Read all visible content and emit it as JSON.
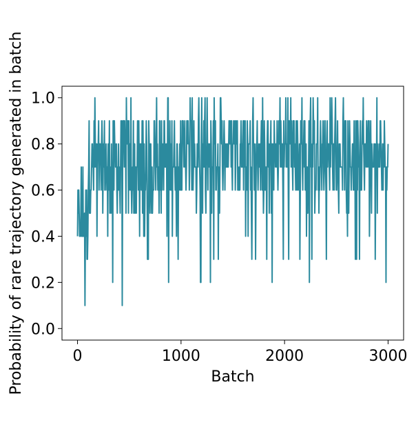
{
  "chart_data": {
    "type": "line",
    "title": "",
    "xlabel": "Batch",
    "ylabel": "Probability of rare trajectory generated in batch",
    "xlim": [
      -150,
      3150
    ],
    "ylim": [
      -0.05,
      1.05
    ],
    "xticks": [
      0,
      1000,
      2000,
      3000
    ],
    "yticks": [
      0.0,
      0.2,
      0.4,
      0.6,
      0.8,
      1.0
    ],
    "xtick_labels": [
      "0",
      "1000",
      "2000",
      "3000"
    ],
    "ytick_labels": [
      "0.0",
      "0.2",
      "0.4",
      "0.6",
      "0.8",
      "1.0"
    ],
    "grid": false,
    "series": [
      {
        "color": "#2b8a9e",
        "segments": [
          {
            "x_start": 0,
            "x_end": 100,
            "min_bottom": 0.0,
            "max_top": 0.7,
            "typical_low": 0.3,
            "typical_high": 0.6
          },
          {
            "x_start": 100,
            "x_end": 300,
            "min_bottom": 0.3,
            "max_top": 1.0,
            "typical_low": 0.5,
            "typical_high": 0.9
          },
          {
            "x_start": 300,
            "x_end": 800,
            "min_bottom": 0.1,
            "max_top": 1.0,
            "typical_low": 0.5,
            "typical_high": 0.9
          },
          {
            "x_start": 800,
            "x_end": 3000,
            "min_bottom": 0.2,
            "max_top": 1.0,
            "typical_low": 0.6,
            "typical_high": 0.9
          }
        ]
      }
    ]
  }
}
